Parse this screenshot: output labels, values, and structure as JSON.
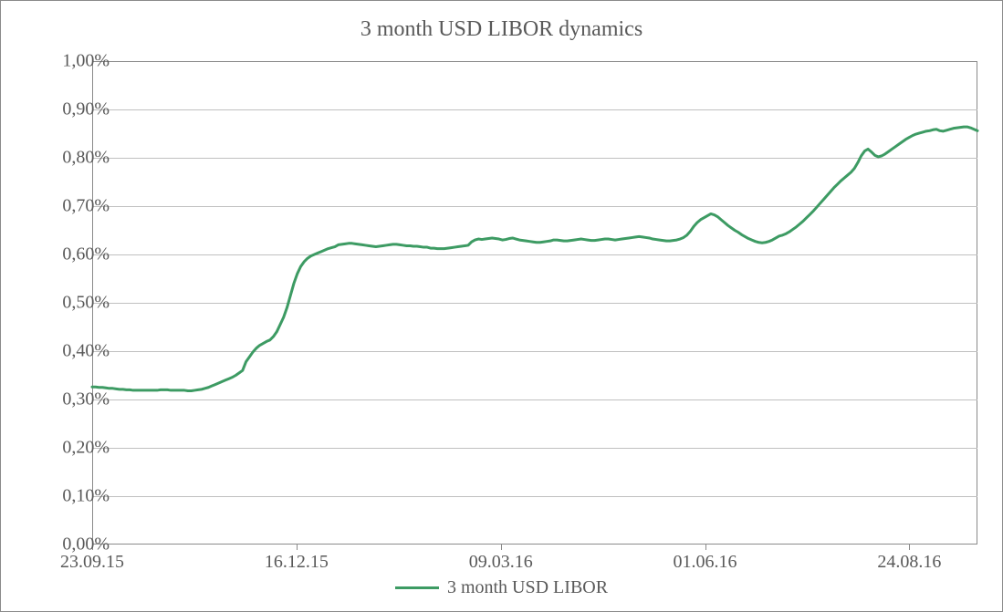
{
  "chart": {
    "type": "line",
    "title": "3 month USD LIBOR dynamics",
    "title_fontsize": 24,
    "title_color": "#595959",
    "background_color": "#ffffff",
    "border_color": "#8a8a8a",
    "grid_color": "#c0c0c0",
    "label_color": "#595959",
    "axis_fontsize": 20,
    "y": {
      "min": 0.0,
      "max": 1.0,
      "tick_step": 0.1,
      "ticks": [
        0.0,
        0.1,
        0.2,
        0.3,
        0.4,
        0.5,
        0.6,
        0.7,
        0.8,
        0.9,
        1.0
      ],
      "tick_labels": [
        "0,00%",
        "0,10%",
        "0,20%",
        "0,30%",
        "0,40%",
        "0,50%",
        "0,60%",
        "0,70%",
        "0,80%",
        "0,90%",
        "1,00%"
      ]
    },
    "x": {
      "min": 0,
      "max": 260,
      "ticks": [
        0,
        60,
        120,
        180,
        240
      ],
      "tick_labels": [
        "23.09.15",
        "16.12.15",
        "09.03.16",
        "01.06.16",
        "24.08.16"
      ]
    },
    "series": [
      {
        "name": "3 month USD LIBOR",
        "color": "#3d9b63",
        "line_width": 3,
        "data": [
          0.326,
          0.326,
          0.325,
          0.325,
          0.324,
          0.323,
          0.323,
          0.322,
          0.321,
          0.321,
          0.32,
          0.32,
          0.319,
          0.319,
          0.319,
          0.319,
          0.319,
          0.319,
          0.319,
          0.319,
          0.32,
          0.32,
          0.32,
          0.319,
          0.319,
          0.319,
          0.319,
          0.319,
          0.318,
          0.318,
          0.319,
          0.32,
          0.321,
          0.323,
          0.325,
          0.328,
          0.331,
          0.334,
          0.337,
          0.34,
          0.343,
          0.346,
          0.35,
          0.355,
          0.36,
          0.378,
          0.388,
          0.398,
          0.406,
          0.412,
          0.416,
          0.42,
          0.423,
          0.43,
          0.44,
          0.455,
          0.47,
          0.49,
          0.515,
          0.54,
          0.56,
          0.575,
          0.585,
          0.592,
          0.597,
          0.6,
          0.603,
          0.606,
          0.609,
          0.612,
          0.614,
          0.616,
          0.62,
          0.621,
          0.622,
          0.623,
          0.623,
          0.622,
          0.621,
          0.62,
          0.619,
          0.618,
          0.617,
          0.616,
          0.617,
          0.618,
          0.619,
          0.62,
          0.621,
          0.621,
          0.62,
          0.619,
          0.618,
          0.618,
          0.617,
          0.617,
          0.616,
          0.615,
          0.615,
          0.613,
          0.613,
          0.612,
          0.612,
          0.612,
          0.613,
          0.614,
          0.615,
          0.616,
          0.617,
          0.618,
          0.619,
          0.626,
          0.63,
          0.632,
          0.631,
          0.632,
          0.633,
          0.634,
          0.633,
          0.632,
          0.63,
          0.631,
          0.633,
          0.634,
          0.632,
          0.63,
          0.629,
          0.628,
          0.627,
          0.626,
          0.625,
          0.625,
          0.626,
          0.627,
          0.628,
          0.63,
          0.63,
          0.629,
          0.628,
          0.628,
          0.629,
          0.63,
          0.631,
          0.632,
          0.631,
          0.63,
          0.629,
          0.629,
          0.63,
          0.631,
          0.632,
          0.632,
          0.631,
          0.63,
          0.631,
          0.632,
          0.633,
          0.634,
          0.635,
          0.636,
          0.637,
          0.636,
          0.635,
          0.634,
          0.632,
          0.631,
          0.63,
          0.629,
          0.628,
          0.628,
          0.629,
          0.63,
          0.632,
          0.635,
          0.64,
          0.648,
          0.658,
          0.666,
          0.672,
          0.676,
          0.68,
          0.684,
          0.682,
          0.678,
          0.672,
          0.666,
          0.66,
          0.655,
          0.65,
          0.646,
          0.641,
          0.637,
          0.633,
          0.63,
          0.627,
          0.625,
          0.624,
          0.625,
          0.627,
          0.63,
          0.634,
          0.638,
          0.64,
          0.643,
          0.647,
          0.652,
          0.657,
          0.663,
          0.669,
          0.676,
          0.683,
          0.69,
          0.698,
          0.706,
          0.714,
          0.722,
          0.73,
          0.738,
          0.745,
          0.752,
          0.758,
          0.764,
          0.77,
          0.778,
          0.79,
          0.804,
          0.814,
          0.818,
          0.812,
          0.805,
          0.802,
          0.804,
          0.808,
          0.813,
          0.818,
          0.823,
          0.828,
          0.833,
          0.838,
          0.842,
          0.846,
          0.849,
          0.851,
          0.853,
          0.855,
          0.856,
          0.858,
          0.859,
          0.856,
          0.855,
          0.857,
          0.859,
          0.861,
          0.862,
          0.863,
          0.864,
          0.864,
          0.862,
          0.859,
          0.856
        ]
      }
    ],
    "legend": {
      "label": "3 month USD LIBOR",
      "fontsize": 20,
      "line_color": "#3d9b63",
      "line_width": 3
    }
  }
}
